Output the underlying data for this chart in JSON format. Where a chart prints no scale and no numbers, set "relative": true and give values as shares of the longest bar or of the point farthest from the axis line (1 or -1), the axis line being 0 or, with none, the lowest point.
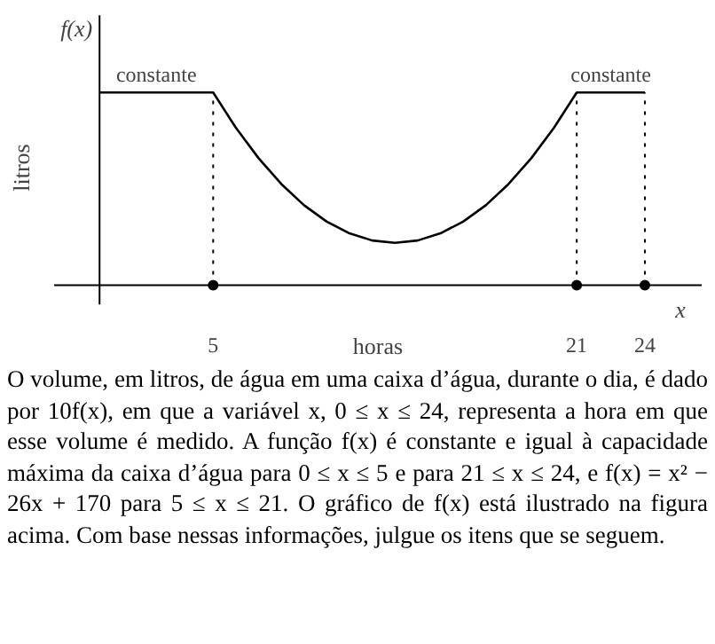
{
  "chart_data": {
    "type": "line",
    "relative": true,
    "xlabel": "horas",
    "ylabel": "litros",
    "tick_labels": "x",
    "grid": false,
    "x": [
      0,
      5,
      6,
      7,
      8,
      9,
      10,
      11,
      12,
      13,
      14,
      15,
      16,
      17,
      18,
      19,
      20,
      21,
      24
    ],
    "series": [
      {
        "color": "#000000",
        "values": [
          1,
          1,
          0.817,
          0.659,
          0.525,
          0.415,
          0.33,
          0.269,
          0.232,
          0.22,
          0.232,
          0.269,
          0.33,
          0.415,
          0.525,
          0.659,
          0.817,
          1,
          1
        ]
      },
      {
        "type": "scatter",
        "marker": "circle",
        "color": "#000000",
        "x": [
          5,
          21,
          24
        ],
        "values": [
          0,
          0,
          0
        ]
      }
    ],
    "xlim": [
      -2,
      26.5
    ],
    "xticks": [
      5,
      21,
      24
    ],
    "ref_lines": [
      {
        "axis": "x",
        "value": 5,
        "line_style": "dotted"
      },
      {
        "axis": "x",
        "value": 21,
        "line_style": "dotted"
      },
      {
        "axis": "x",
        "value": 24,
        "line_style": "dotted"
      }
    ],
    "annotations": [
      {
        "text": "constante",
        "x": 2.5,
        "y": 1
      },
      {
        "text": "constante",
        "x": 22.5,
        "y": 1
      },
      "f(x)",
      "x",
      "O volume, em litros, de água em uma caixa d’água, durante o dia, é dado por 10f(x), em que a variável x, 0 ≤ x ≤ 24, representa a hora em que esse volume é medido. A função f(x) é constante e igual à capacidade máxima da caixa d’água para 0 ≤ x ≤ 5 e para 21 ≤ x ≤ 24, e f(x) = x² − 26x + 170 para 5 ≤ x ≤ 21. O gráfico de f(x) está ilustrado na figura acima. Com base nessas informações, julgue os itens que se seguem."
    ]
  }
}
